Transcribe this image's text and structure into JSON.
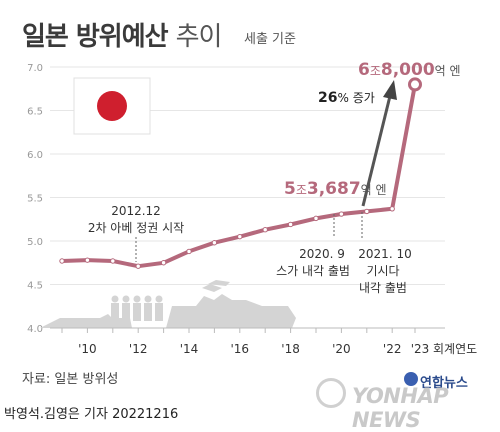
{
  "title_bold": "일본 방위예산",
  "title_light": "추이",
  "subtitle": "세출 기준",
  "source": "자료: 일본 방위성",
  "credit": "박영석.김영은 기자  20221216",
  "brand": "연합뉴스",
  "watermark": "YONHAP NEWS",
  "chart_data": {
    "type": "line",
    "x_unit_label": "회계연도",
    "x_tick_labels": [
      "'10",
      "'12",
      "'14",
      "'16",
      "'18",
      "'20",
      "'22",
      "'23"
    ],
    "y_tick_labels": [
      "4.0",
      "4.5",
      "5.0",
      "5.5",
      "6.0",
      "6.5",
      "7.0"
    ],
    "ylim": [
      4.0,
      7.0
    ],
    "x": [
      "2009",
      "2010",
      "2011",
      "2012",
      "2013",
      "2014",
      "2015",
      "2016",
      "2017",
      "2018",
      "2019",
      "2020",
      "2021",
      "2022",
      "2023"
    ],
    "values": [
      4.77,
      4.78,
      4.77,
      4.71,
      4.75,
      4.88,
      4.98,
      5.05,
      5.13,
      5.19,
      5.26,
      5.31,
      5.34,
      5.37,
      6.8
    ],
    "series_color": "#b5697c",
    "grid": "horizontal",
    "annotations": {
      "peak_label": {
        "num1": "6",
        "unit1": "조",
        "num2": "8,000",
        "unit2": "억 엔"
      },
      "label_2022": {
        "num1": "5",
        "unit1": "조",
        "num2": "3,687",
        "unit2": "억 엔"
      },
      "increase_label": {
        "value": "26",
        "suffix": "% 증가"
      },
      "label_2012": {
        "line1": "2012.12",
        "line2": "2차 아베 정권 시작"
      },
      "label_2020": {
        "line1": "2020. 9",
        "line2": "스가 내각 출범"
      },
      "label_2021": {
        "line1": "2021. 10",
        "line2": "기시다",
        "line3": "내각 출범"
      }
    }
  }
}
